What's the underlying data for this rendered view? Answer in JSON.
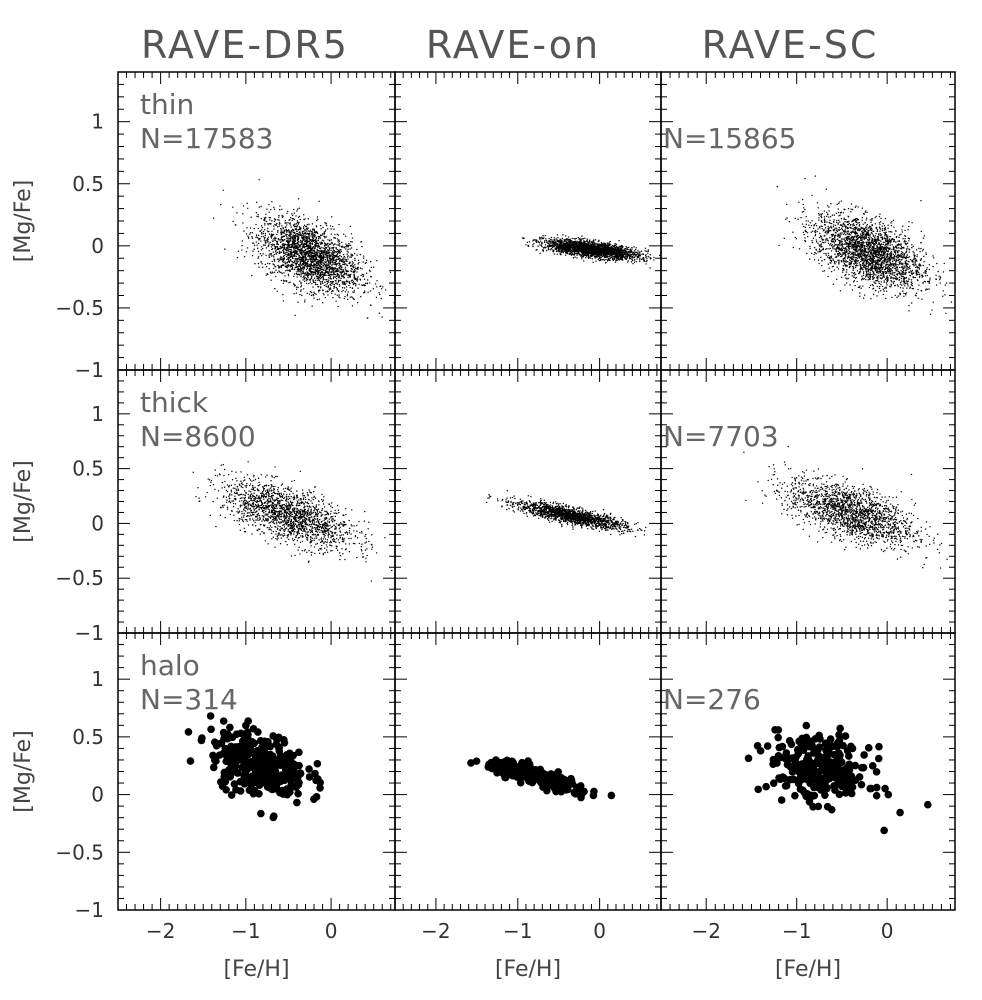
{
  "columns": [
    "RAVE-DR5",
    "RAVE-on",
    "RAVE-SC"
  ],
  "rows": [
    "thin",
    "thick",
    "halo"
  ],
  "chart_data": [
    {
      "panel": "thin-RAVE-DR5",
      "type": "scatter",
      "row_label": "thin",
      "n_label": "N=17583",
      "cluster": {
        "x_center": -0.25,
        "y_center": -0.08,
        "x_spread": 0.3,
        "y_spread": 0.13,
        "slope": -0.25,
        "count": 2500
      }
    },
    {
      "panel": "thin-RAVE-on",
      "type": "scatter",
      "row_label": "",
      "n_label": "",
      "cluster": {
        "x_center": -0.1,
        "y_center": -0.03,
        "x_spread": 0.28,
        "y_spread": 0.03,
        "slope": -0.08,
        "count": 2500
      }
    },
    {
      "panel": "thin-RAVE-SC",
      "type": "scatter",
      "row_label": "",
      "n_label": "N=15865",
      "cluster": {
        "x_center": -0.2,
        "y_center": -0.05,
        "x_spread": 0.3,
        "y_spread": 0.13,
        "slope": -0.25,
        "count": 2500
      }
    },
    {
      "panel": "thick-RAVE-DR5",
      "type": "scatter",
      "row_label": "thick",
      "n_label": "N=8600",
      "cluster": {
        "x_center": -0.5,
        "y_center": 0.08,
        "x_spread": 0.38,
        "y_spread": 0.12,
        "slope": -0.25,
        "count": 1800
      }
    },
    {
      "panel": "thick-RAVE-on",
      "type": "scatter",
      "row_label": "",
      "n_label": "",
      "cluster": {
        "x_center": -0.35,
        "y_center": 0.07,
        "x_spread": 0.33,
        "y_spread": 0.035,
        "slope": -0.15,
        "count": 1800
      }
    },
    {
      "panel": "thick-RAVE-SC",
      "type": "scatter",
      "row_label": "",
      "n_label": "N=7703",
      "cluster": {
        "x_center": -0.4,
        "y_center": 0.1,
        "x_spread": 0.35,
        "y_spread": 0.12,
        "slope": -0.25,
        "count": 1800
      }
    },
    {
      "panel": "halo-RAVE-DR5",
      "type": "scatter",
      "row_label": "halo",
      "n_label": "N=314",
      "cluster": {
        "x_center": -0.85,
        "y_center": 0.27,
        "x_spread": 0.28,
        "y_spread": 0.14,
        "slope": -0.18,
        "count": 314
      }
    },
    {
      "panel": "halo-RAVE-on",
      "type": "scatter",
      "row_label": "",
      "n_label": "",
      "cluster": {
        "x_center": -0.75,
        "y_center": 0.15,
        "x_spread": 0.3,
        "y_spread": 0.035,
        "slope": -0.2,
        "count": 276
      }
    },
    {
      "panel": "halo-RAVE-SC",
      "type": "scatter",
      "row_label": "",
      "n_label": "N=276",
      "cluster": {
        "x_center": -0.75,
        "y_center": 0.22,
        "x_spread": 0.28,
        "y_spread": 0.14,
        "slope": -0.15,
        "count": 276
      }
    }
  ],
  "axes": {
    "xlabel": "[Fe/H]",
    "ylabel": "[Mg/Fe]",
    "xlim": [
      -2.5,
      0.75
    ],
    "ylim": [
      -1,
      1.4
    ],
    "xticks": [
      -2,
      -1,
      0
    ],
    "xtick_labels": [
      "−2",
      "−1",
      "0"
    ],
    "yticks": [
      -1,
      -0.5,
      0,
      0.5,
      1
    ],
    "ytick_labels": [
      "−1",
      "−0.5",
      "0",
      "0.5",
      "1"
    ]
  },
  "colors": {
    "points": "#000000",
    "frame": "#000000",
    "text": "#555555"
  }
}
